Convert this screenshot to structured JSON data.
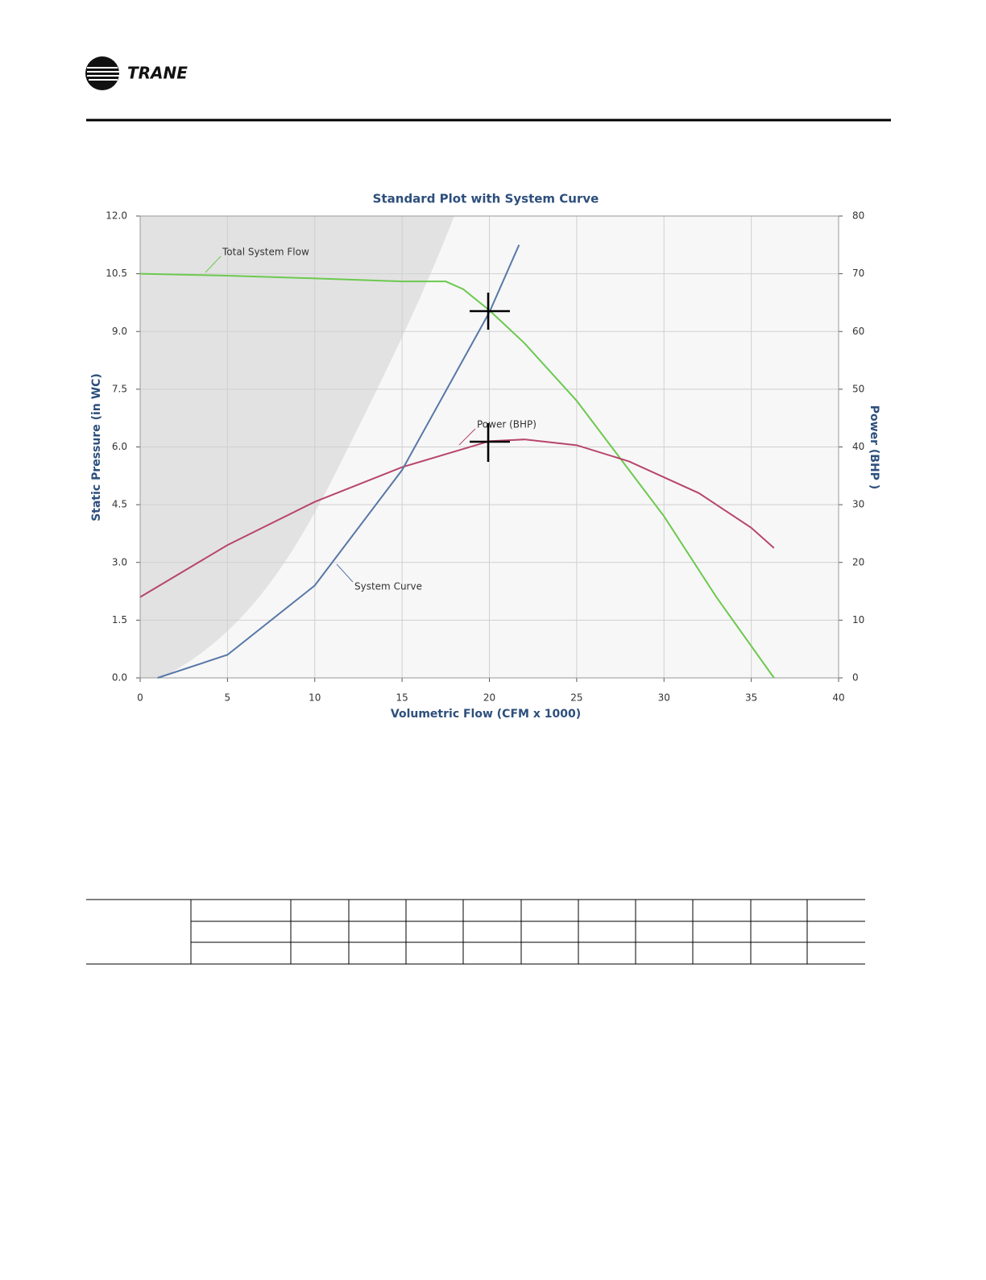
{
  "header": {
    "brand": "TRANE"
  },
  "chart_data": {
    "type": "line",
    "title": "Standard Plot with System Curve",
    "xlabel": "Volumetric Flow (CFM x 1000)",
    "ylabel": "Static Pressure (in WC)",
    "y2label": "Power (BHP )",
    "xlim": [
      0,
      40
    ],
    "xticks": [
      0,
      5,
      10,
      15,
      20,
      25,
      30,
      35,
      40
    ],
    "ylim": [
      0,
      12
    ],
    "yticks": [
      {
        "value": 0,
        "label": "0.0"
      },
      {
        "value": 1.5,
        "label": "1.5"
      },
      {
        "value": 3,
        "label": "3.0"
      },
      {
        "value": 4.5,
        "label": "4.5"
      },
      {
        "value": 6,
        "label": "6.0"
      },
      {
        "value": 7.5,
        "label": "7.5"
      },
      {
        "value": 9,
        "label": "9.0"
      },
      {
        "value": 10.5,
        "label": "10.5"
      },
      {
        "value": 12,
        "label": "12.0"
      }
    ],
    "y2lim": [
      0,
      80
    ],
    "y2ticks": [
      0,
      10,
      20,
      30,
      40,
      50,
      60,
      70,
      80
    ],
    "grid": true,
    "series": [
      {
        "name": "Total System Flow",
        "color": "#6cc94f",
        "axis": "y",
        "x": [
          0,
          5,
          10,
          15,
          17.5,
          18.5,
          20,
          22,
          25,
          27,
          30,
          33,
          36.3
        ],
        "values": [
          10.5,
          10.45,
          10.38,
          10.3,
          10.3,
          10.1,
          9.55,
          8.7,
          7.2,
          6.0,
          4.2,
          2.1,
          0
        ]
      },
      {
        "name": "Power (BHP)",
        "color": "#b8466a",
        "axis": "y2",
        "x": [
          0,
          5,
          10,
          15,
          20,
          22,
          25,
          28,
          32,
          35,
          36.3
        ],
        "values": [
          14,
          23,
          30.5,
          36.5,
          41,
          41.3,
          40.3,
          37.5,
          32,
          26,
          22.5
        ]
      },
      {
        "name": "System Curve",
        "color": "#5878a8",
        "axis": "y",
        "x": [
          1,
          5,
          10,
          15,
          20,
          21.7
        ],
        "values": [
          0,
          0.6,
          2.4,
          5.4,
          9.5,
          11.25
        ]
      }
    ]
  }
}
